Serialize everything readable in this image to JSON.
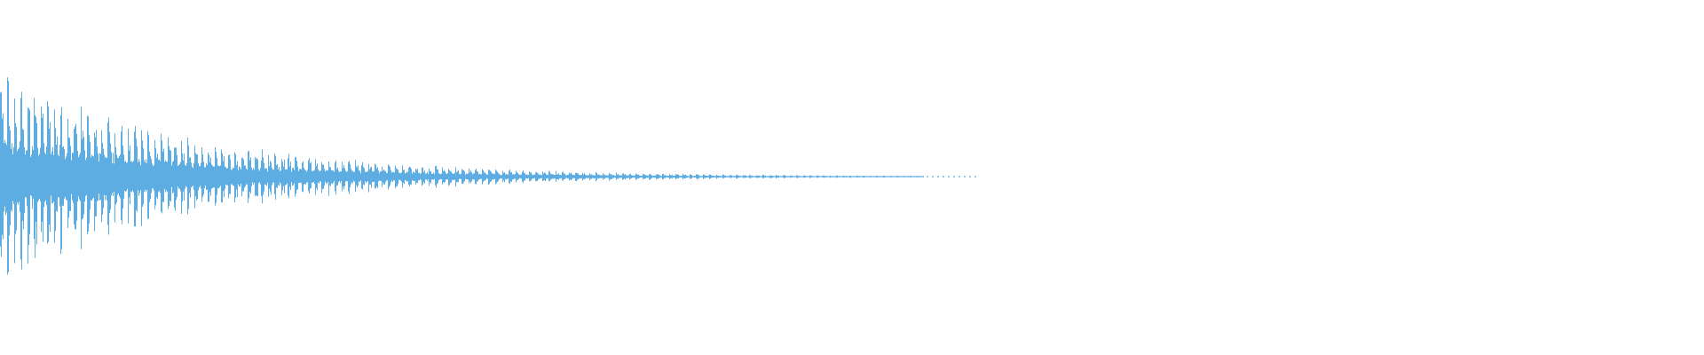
{
  "chart_data": {
    "type": "line",
    "subtype": "audio-waveform",
    "color": "#5dade2",
    "background": "#ffffff",
    "grid": false,
    "legend": "none",
    "title": "",
    "xlabel": "",
    "ylabel": "",
    "ylim": [
      -1,
      1
    ],
    "envelope_time": [
      0,
      0.1,
      0.2,
      0.3,
      0.4,
      0.5,
      0.6,
      0.7,
      0.8,
      0.9,
      1.0
    ],
    "envelope_amplitude": [
      1.0,
      0.6,
      0.35,
      0.21,
      0.13,
      0.075,
      0.045,
      0.027,
      0.016,
      0.0095,
      0.0057
    ],
    "pulse_count": 146
  }
}
